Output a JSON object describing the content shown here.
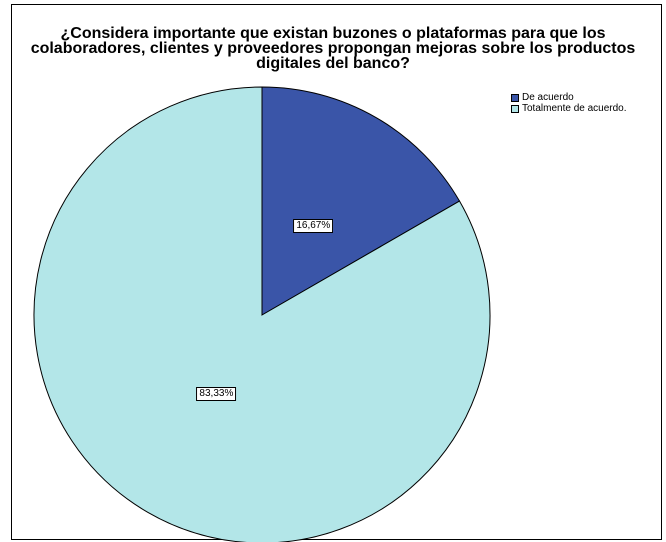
{
  "chart_data": {
    "type": "pie",
    "title_lines": [
      "¿Considera importante que existan buzones o plataformas  para que los",
      "colaboradores, clientes y proveedores propongan mejoras sobre los productos",
      "digitales del banco?"
    ],
    "categories": [
      "De acuerdo",
      "Totalmente de acuerdo."
    ],
    "values": [
      16.67,
      83.33
    ],
    "labels": [
      "16,67%",
      "83,33%"
    ],
    "colors": [
      "#3a55a8",
      "#b3e6e8"
    ],
    "start_angle": "12 o'clock",
    "direction": "clockwise",
    "legend_position": "top-right"
  }
}
